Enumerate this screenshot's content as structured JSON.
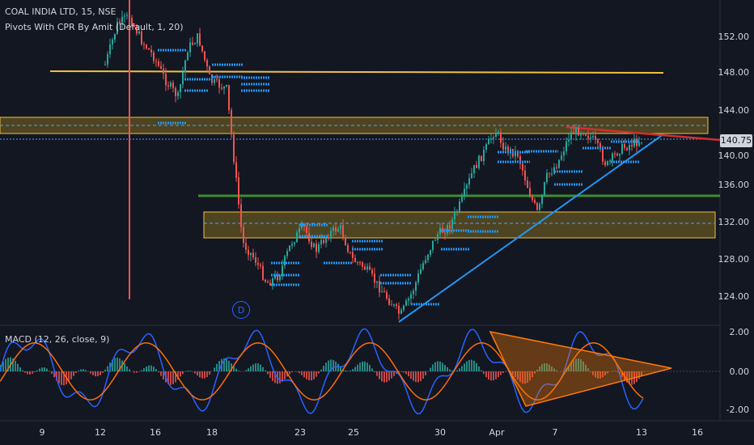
{
  "header": {
    "symbol": "COAL INDIA LTD, 15, NSE",
    "indicator": "Pivots With CPR By Amit (Default, 1, 20)"
  },
  "macd_panel": {
    "label": "MACD (12, 26, close, 9)"
  },
  "price_axis": {
    "ticks": [
      "152.00",
      "148.00",
      "144.00",
      "140.00",
      "136.00",
      "132.00",
      "128.00",
      "124.00"
    ],
    "current_price": "140.75"
  },
  "macd_axis": {
    "ticks": [
      "2.00",
      "0.00",
      "-2.00"
    ]
  },
  "time_axis": {
    "ticks": [
      "9",
      "12",
      "16",
      "18",
      "23",
      "25",
      "30",
      "Apr",
      "7",
      "13",
      "16"
    ]
  },
  "markers": {
    "dividend": "D"
  },
  "colors": {
    "background": "#131722",
    "up_candle": "#26a69a",
    "down_candle": "#ef5350",
    "pivot_blue": "#2196f3",
    "resistance_yellow": "#f0c040",
    "support_green": "#33691e",
    "trend_red": "#d32f2f",
    "macd_orange": "#ff7a00"
  }
}
